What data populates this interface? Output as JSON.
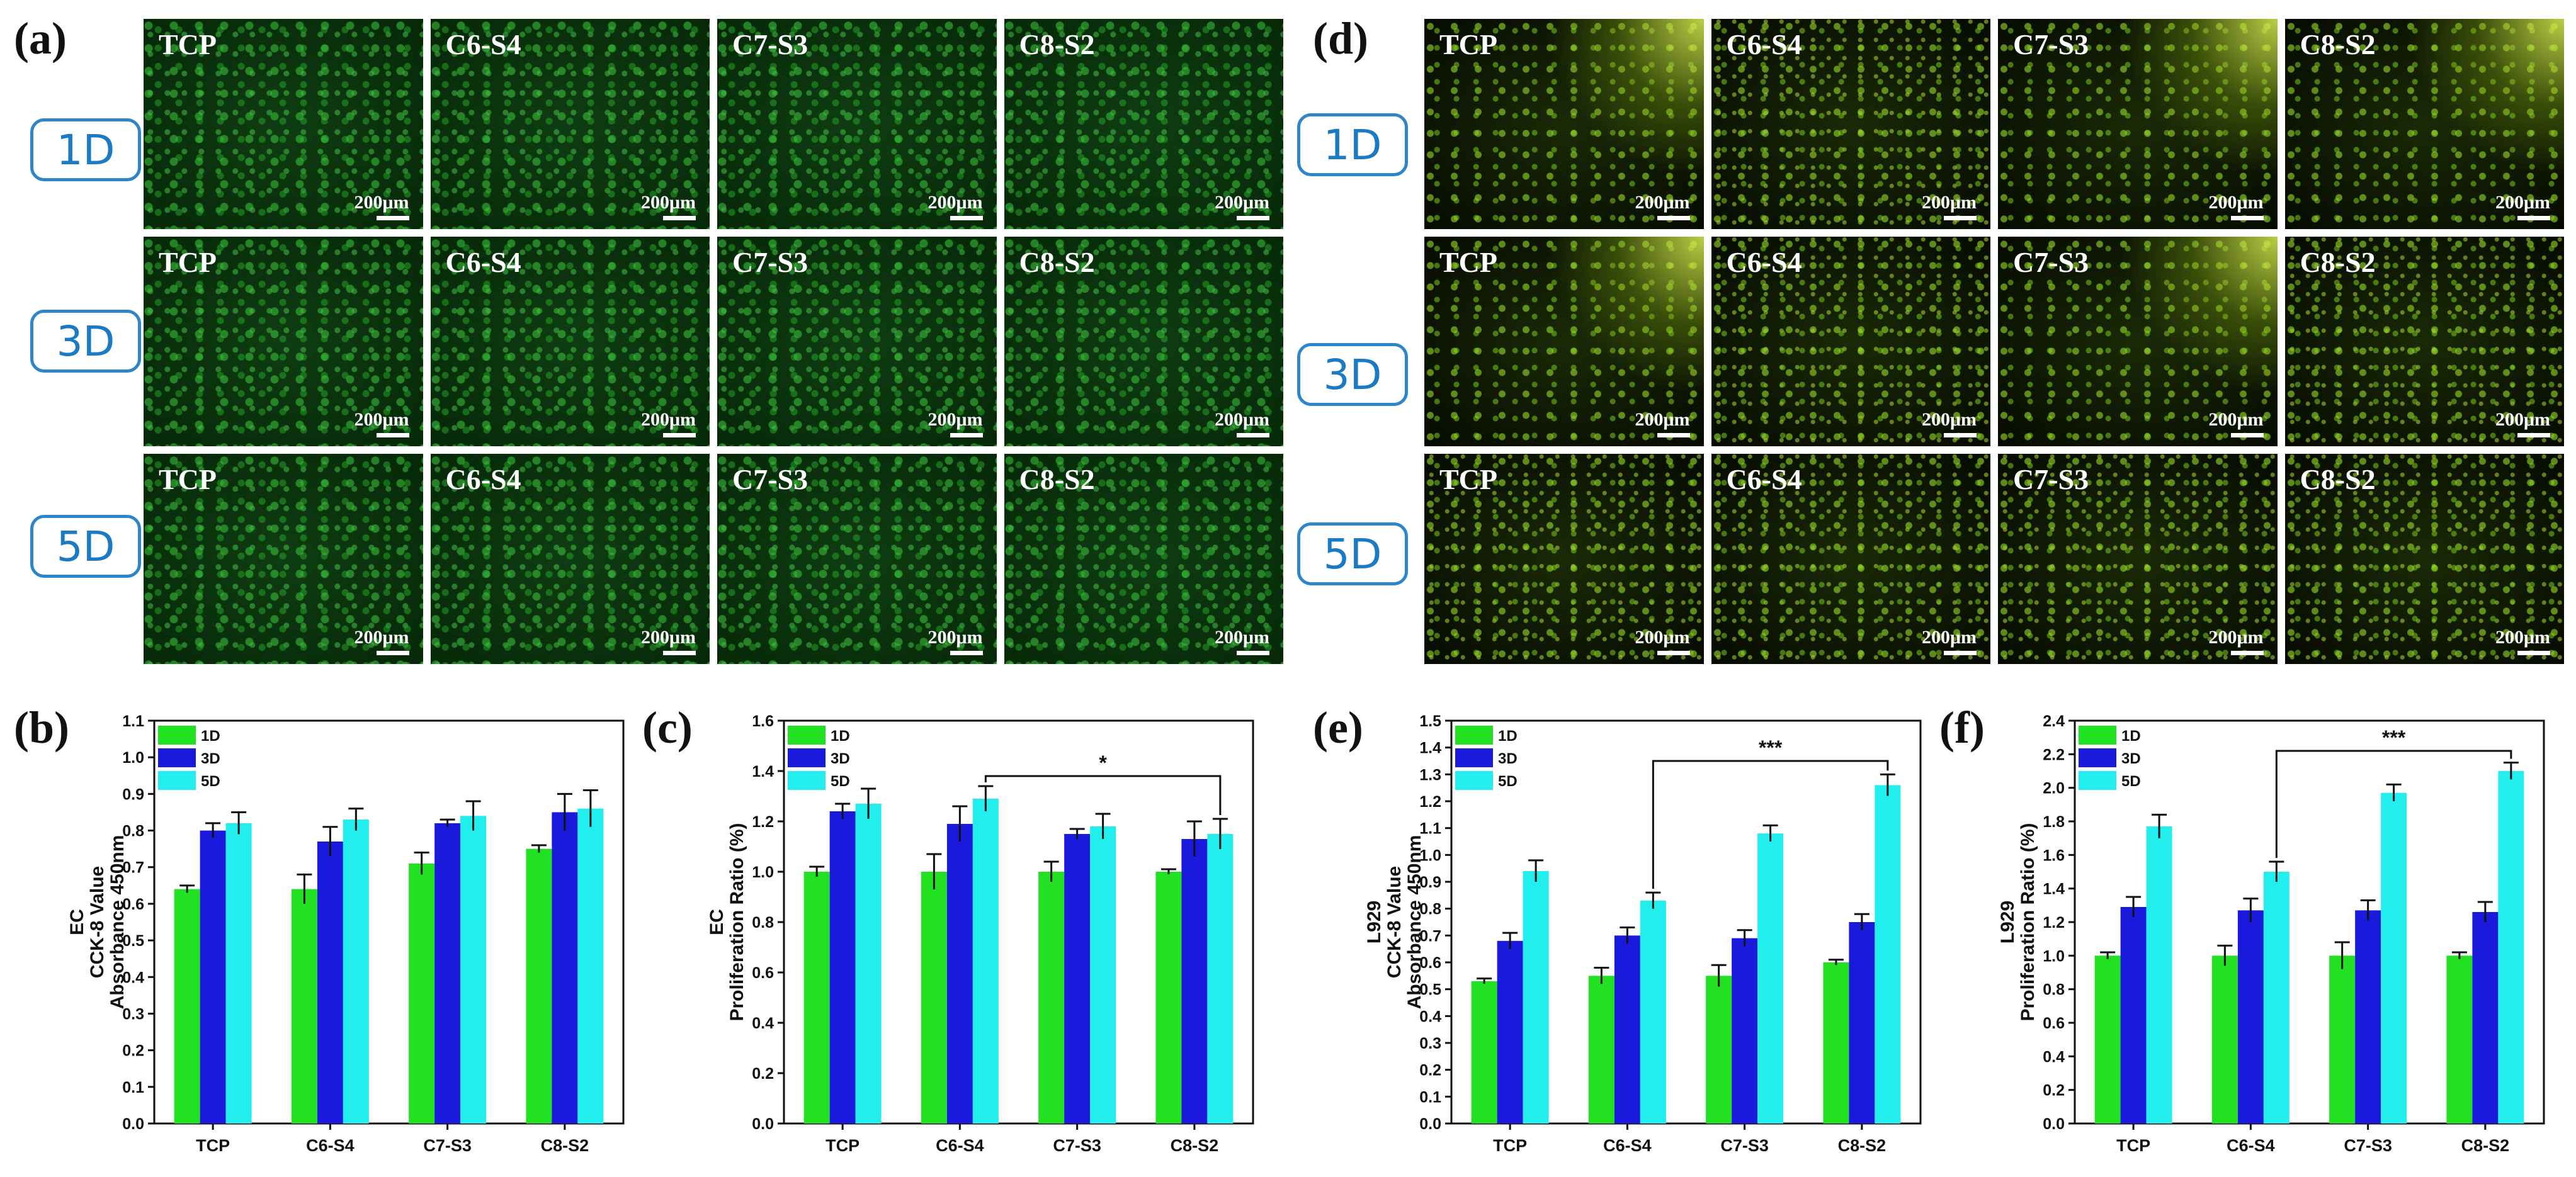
{
  "panels": {
    "a": "(a)",
    "b": "(b)",
    "c": "(c)",
    "d": "(d)",
    "e": "(e)",
    "f": "(f)"
  },
  "days": [
    "1D",
    "3D",
    "5D"
  ],
  "samples": [
    "TCP",
    "C6-S4",
    "C7-S3",
    "C8-S2"
  ],
  "scale_bar": "200μm",
  "colors": {
    "d1": "#22e022",
    "d3": "#1a1adc",
    "d5": "#22eeee",
    "daybox": "#2e86c9"
  },
  "chart_data": [
    {
      "id": "b",
      "type": "bar",
      "title": "",
      "ylabel_lines": [
        "EC",
        "CCK-8 Value",
        "Absorbance 450nm"
      ],
      "categories": [
        "TCP",
        "C6-S4",
        "C7-S3",
        "C8-S2"
      ],
      "ylim": [
        0.0,
        1.1
      ],
      "yticks": [
        0.0,
        0.1,
        0.2,
        0.3,
        0.4,
        0.5,
        0.6,
        0.7,
        0.8,
        0.9,
        1.0,
        1.1
      ],
      "tickfmt": 1,
      "legend": [
        "1D",
        "3D",
        "5D"
      ],
      "series": [
        {
          "name": "1D",
          "values": [
            0.64,
            0.64,
            0.71,
            0.75
          ],
          "err": [
            0.01,
            0.04,
            0.03,
            0.01
          ]
        },
        {
          "name": "3D",
          "values": [
            0.8,
            0.77,
            0.82,
            0.85
          ],
          "err": [
            0.02,
            0.04,
            0.01,
            0.05
          ]
        },
        {
          "name": "5D",
          "values": [
            0.82,
            0.83,
            0.84,
            0.86
          ],
          "err": [
            0.03,
            0.03,
            0.04,
            0.05
          ]
        }
      ],
      "sig": null
    },
    {
      "id": "c",
      "type": "bar",
      "title": "",
      "ylabel_lines": [
        "EC",
        "Proliferation Ratio (%)"
      ],
      "categories": [
        "TCP",
        "C6-S4",
        "C7-S3",
        "C8-S2"
      ],
      "ylim": [
        0.0,
        1.6
      ],
      "yticks": [
        0.0,
        0.2,
        0.4,
        0.6,
        0.8,
        1.0,
        1.2,
        1.4,
        1.6
      ],
      "tickfmt": 1,
      "legend": [
        "1D",
        "3D",
        "5D"
      ],
      "series": [
        {
          "name": "1D",
          "values": [
            1.0,
            1.0,
            1.0,
            1.0
          ],
          "err": [
            0.02,
            0.07,
            0.04,
            0.01
          ]
        },
        {
          "name": "3D",
          "values": [
            1.24,
            1.19,
            1.15,
            1.13
          ],
          "err": [
            0.03,
            0.07,
            0.02,
            0.07
          ]
        },
        {
          "name": "5D",
          "values": [
            1.27,
            1.29,
            1.18,
            1.15
          ],
          "err": [
            0.06,
            0.05,
            0.05,
            0.06
          ]
        }
      ],
      "sig": {
        "label": "*",
        "from": [
          1,
          2
        ],
        "to": [
          3,
          2
        ],
        "y": 1.38
      }
    },
    {
      "id": "e",
      "type": "bar",
      "title": "",
      "ylabel_lines": [
        "L929",
        "CCK-8 Value",
        "Absorbance 450nm"
      ],
      "categories": [
        "TCP",
        "C6-S4",
        "C7-S3",
        "C8-S2"
      ],
      "ylim": [
        0.0,
        1.5
      ],
      "yticks": [
        0.0,
        0.1,
        0.2,
        0.3,
        0.4,
        0.5,
        0.6,
        0.7,
        0.8,
        0.9,
        1.0,
        1.1,
        1.2,
        1.3,
        1.4,
        1.5
      ],
      "tickfmt": 1,
      "legend": [
        "1D",
        "3D",
        "5D"
      ],
      "series": [
        {
          "name": "1D",
          "values": [
            0.53,
            0.55,
            0.55,
            0.6
          ],
          "err": [
            0.01,
            0.03,
            0.04,
            0.01
          ]
        },
        {
          "name": "3D",
          "values": [
            0.68,
            0.7,
            0.69,
            0.75
          ],
          "err": [
            0.03,
            0.03,
            0.03,
            0.03
          ]
        },
        {
          "name": "5D",
          "values": [
            0.94,
            0.83,
            1.08,
            1.26
          ],
          "err": [
            0.04,
            0.03,
            0.03,
            0.04
          ]
        }
      ],
      "sig": {
        "label": "***",
        "from": [
          1,
          2
        ],
        "to": [
          3,
          2
        ],
        "y": 1.35
      }
    },
    {
      "id": "f",
      "type": "bar",
      "title": "",
      "ylabel_lines": [
        "L929",
        "Proliferation Ratio (%)"
      ],
      "categories": [
        "TCP",
        "C6-S4",
        "C7-S3",
        "C8-S2"
      ],
      "ylim": [
        0.0,
        2.4
      ],
      "yticks": [
        0.0,
        0.2,
        0.4,
        0.6,
        0.8,
        1.0,
        1.2,
        1.4,
        1.6,
        1.8,
        2.0,
        2.2,
        2.4
      ],
      "tickfmt": 1,
      "legend": [
        "1D",
        "3D",
        "5D"
      ],
      "series": [
        {
          "name": "1D",
          "values": [
            1.0,
            1.0,
            1.0,
            1.0
          ],
          "err": [
            0.02,
            0.06,
            0.08,
            0.02
          ]
        },
        {
          "name": "3D",
          "values": [
            1.29,
            1.27,
            1.27,
            1.26
          ],
          "err": [
            0.06,
            0.07,
            0.06,
            0.06
          ]
        },
        {
          "name": "5D",
          "values": [
            1.77,
            1.5,
            1.97,
            2.1
          ],
          "err": [
            0.07,
            0.06,
            0.05,
            0.05
          ]
        }
      ],
      "sig": {
        "label": "***",
        "from": [
          1,
          2
        ],
        "to": [
          3,
          2
        ],
        "y": 2.22
      }
    }
  ]
}
